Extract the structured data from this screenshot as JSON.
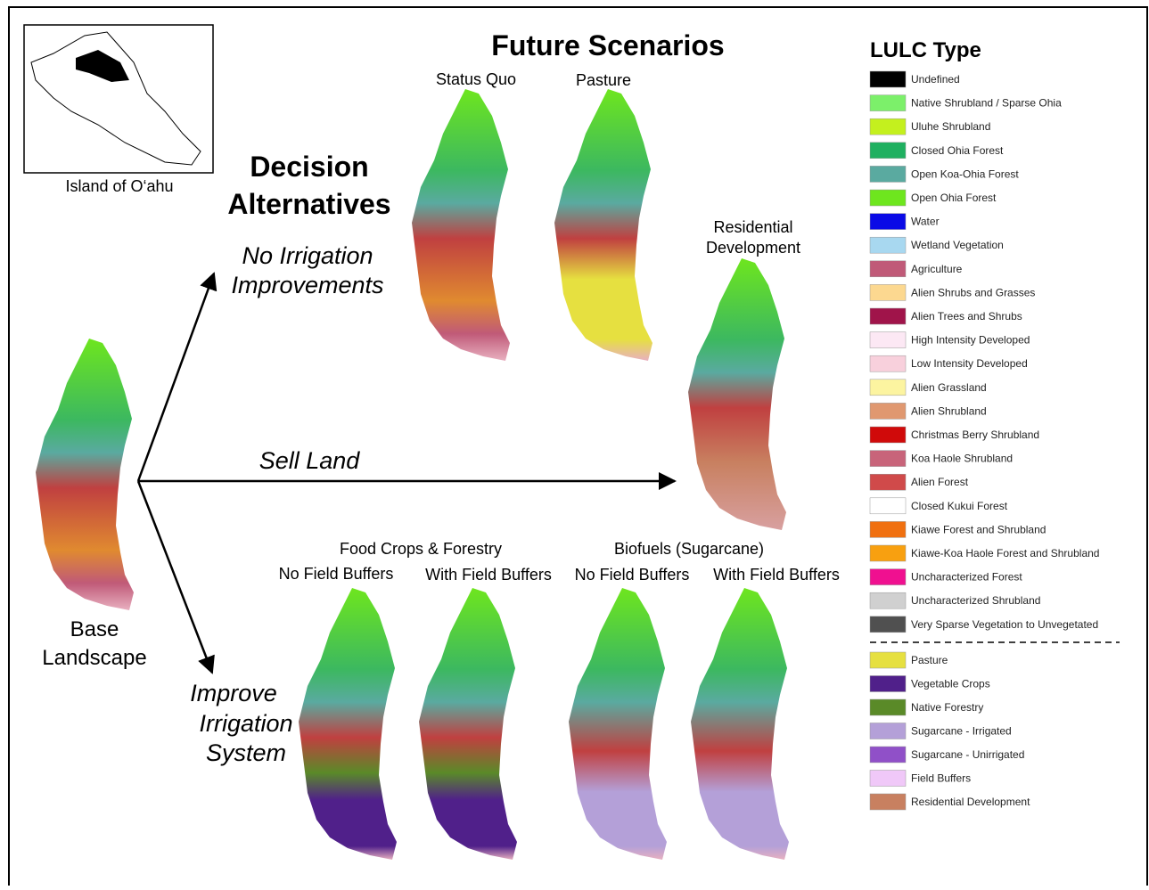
{
  "inset": {
    "caption": "Island of O‘ahu"
  },
  "title": "Future Scenarios",
  "decision_alternatives": [
    "Decision",
    "Alternatives"
  ],
  "base": [
    "Base",
    "Landscape"
  ],
  "branches": {
    "no_irrigation": [
      "No Irrigation",
      "Improvements"
    ],
    "sell_land": "Sell Land",
    "improve_irrigation": [
      "Improve",
      "Irrigation",
      "System"
    ]
  },
  "scenarios": {
    "status_quo": "Status Quo",
    "pasture": "Pasture",
    "residential": [
      "Residential",
      "Development"
    ],
    "food_crops": "Food Crops & Forestry",
    "biofuels": "Biofuels (Sugarcane)",
    "sub": [
      "No Field Buffers",
      "With Field Buffers",
      "No Field Buffers",
      "With Field Buffers"
    ]
  },
  "legend": {
    "title": "LULC Type",
    "items": [
      {
        "label": "Undefined",
        "color": "#000000"
      },
      {
        "label": "Native Shrubland / Sparse Ohia",
        "color": "#7cf06a"
      },
      {
        "label": "Uluhe Shrubland",
        "color": "#c4f01e"
      },
      {
        "label": "Closed Ohia Forest",
        "color": "#1fb060"
      },
      {
        "label": "Open Koa-Ohia Forest",
        "color": "#5aaaa0"
      },
      {
        "label": "Open Ohia Forest",
        "color": "#6ee61e"
      },
      {
        "label": "Water",
        "color": "#0a0ae6"
      },
      {
        "label": "Wetland Vegetation",
        "color": "#a8d8f0"
      },
      {
        "label": "Agriculture",
        "color": "#c05a78"
      },
      {
        "label": "Alien Shrubs and Grasses",
        "color": "#fcd890"
      },
      {
        "label": "Alien Trees and Shrubs",
        "color": "#a0144a"
      },
      {
        "label": "High Intensity Developed",
        "color": "#fce8f4"
      },
      {
        "label": "Low Intensity Developed",
        "color": "#f8d0dc"
      },
      {
        "label": "Alien Grassland",
        "color": "#fcf4a0"
      },
      {
        "label": "Alien Shrubland",
        "color": "#e09870"
      },
      {
        "label": "Christmas Berry Shrubland",
        "color": "#d00a0a"
      },
      {
        "label": "Koa Haole Shrubland",
        "color": "#c8647a"
      },
      {
        "label": "Alien Forest",
        "color": "#d04a4a"
      },
      {
        "label": "Closed Kukui Forest",
        "color": "#ffffff"
      },
      {
        "label": "Kiawe Forest and Shrubland",
        "color": "#f07010"
      },
      {
        "label": "Kiawe-Koa Haole Forest and Shrubland",
        "color": "#f8a010"
      },
      {
        "label": "Uncharacterized Forest",
        "color": "#f01090"
      },
      {
        "label": "Uncharacterized Shrubland",
        "color": "#d0d0d0"
      },
      {
        "label": "Very Sparse Vegetation to Unvegetated",
        "color": "#505050"
      }
    ],
    "extra_items": [
      {
        "label": "Pasture",
        "color": "#e6e040"
      },
      {
        "label": "Vegetable Crops",
        "color": "#50208a"
      },
      {
        "label": "Native Forestry",
        "color": "#5a8a28"
      },
      {
        "label": "Sugarcane - Irrigated",
        "color": "#b4a0d8"
      },
      {
        "label": "Sugarcane - Unirrigated",
        "color": "#9050c8"
      },
      {
        "label": "Field Buffers",
        "color": "#f0c8f8"
      },
      {
        "label": "Residential Development",
        "color": "#c88060"
      }
    ]
  }
}
